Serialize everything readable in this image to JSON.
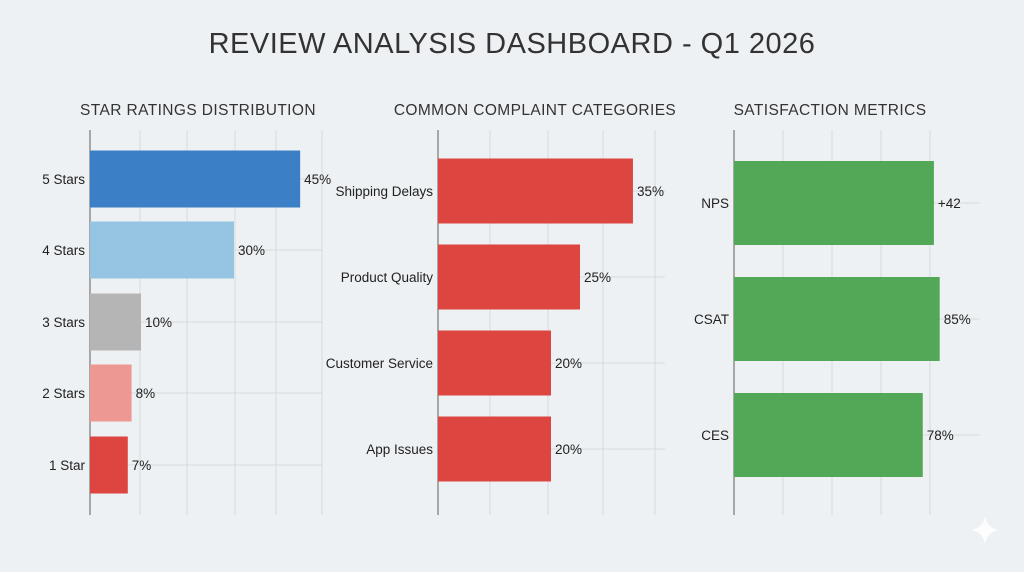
{
  "title": "REVIEW ANALYSIS DASHBOARD - Q1 2026",
  "chart_data": [
    {
      "type": "bar",
      "orientation": "horizontal",
      "title": "STAR RATINGS DISTRIBUTION",
      "categories": [
        "5 Stars",
        "4 Stars",
        "3 Stars",
        "2 Stars",
        "1 Star"
      ],
      "values": [
        45,
        30,
        10,
        8,
        7
      ],
      "labels": [
        "45%",
        "30%",
        "10%",
        "8%",
        "7%"
      ],
      "colors": [
        "#3b7fc6",
        "#95c5e3",
        "#b5b5b5",
        "#ee9893",
        "#dc4540"
      ],
      "grid": true
    },
    {
      "type": "bar",
      "orientation": "horizontal",
      "title": "COMMON COMPLAINT CATEGORIES",
      "categories": [
        "Shipping Delays",
        "Product Quality",
        "Customer Service",
        "App Issues"
      ],
      "values": [
        35,
        25,
        20,
        20
      ],
      "labels": [
        "35%",
        "25%",
        "20%",
        "20%"
      ],
      "colors": [
        "#dc4540",
        "#dc4540",
        "#dc4540",
        "#dc4540"
      ],
      "grid": true
    },
    {
      "type": "bar",
      "orientation": "horizontal",
      "title": "SATISFACTION METRICS",
      "categories": [
        "NPS",
        "CSAT",
        "CES"
      ],
      "values": [
        42,
        85,
        78
      ],
      "labels": [
        "+42",
        "85%",
        "78%"
      ],
      "colors": [
        "#53a857",
        "#53a857",
        "#53a857"
      ],
      "grid": true
    }
  ]
}
